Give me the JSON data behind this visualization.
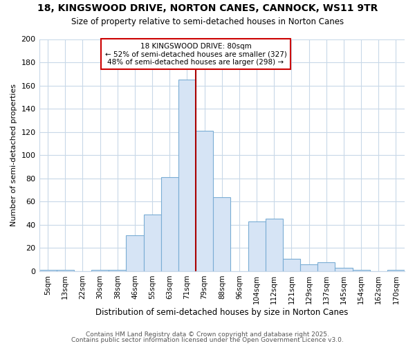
{
  "title_line1": "18, KINGSWOOD DRIVE, NORTON CANES, CANNOCK, WS11 9TR",
  "title_line2": "Size of property relative to semi-detached houses in Norton Canes",
  "xlabel": "Distribution of semi-detached houses by size in Norton Canes",
  "ylabel": "Number of semi-detached properties",
  "footer1": "Contains HM Land Registry data © Crown copyright and database right 2025.",
  "footer2": "Contains public sector information licensed under the Open Government Licence v3.0.",
  "property_label": "18 KINGSWOOD DRIVE: 80sqm",
  "smaller_count": 327,
  "smaller_pct": 52,
  "larger_count": 298,
  "larger_pct": 48,
  "bar_categories": [
    "5sqm",
    "13sqm",
    "22sqm",
    "30sqm",
    "38sqm",
    "46sqm",
    "55sqm",
    "63sqm",
    "71sqm",
    "79sqm",
    "88sqm",
    "96sqm",
    "104sqm",
    "112sqm",
    "121sqm",
    "129sqm",
    "137sqm",
    "145sqm",
    "154sqm",
    "162sqm",
    "170sqm"
  ],
  "bar_values": [
    1,
    1,
    0,
    1,
    1,
    31,
    49,
    81,
    165,
    121,
    64,
    0,
    43,
    45,
    11,
    6,
    8,
    3,
    1,
    0,
    1
  ],
  "bar_color": "#d6e4f5",
  "bar_edgecolor": "#7aadd4",
  "marker_bin_index": 9,
  "marker_color": "#aa0000",
  "ylim": [
    0,
    200
  ],
  "yticks": [
    0,
    20,
    40,
    60,
    80,
    100,
    120,
    140,
    160,
    180,
    200
  ],
  "annotation_box_color": "#cc0000",
  "plot_bg_color": "#ffffff",
  "fig_bg_color": "#ffffff",
  "grid_color": "#c8d8e8"
}
